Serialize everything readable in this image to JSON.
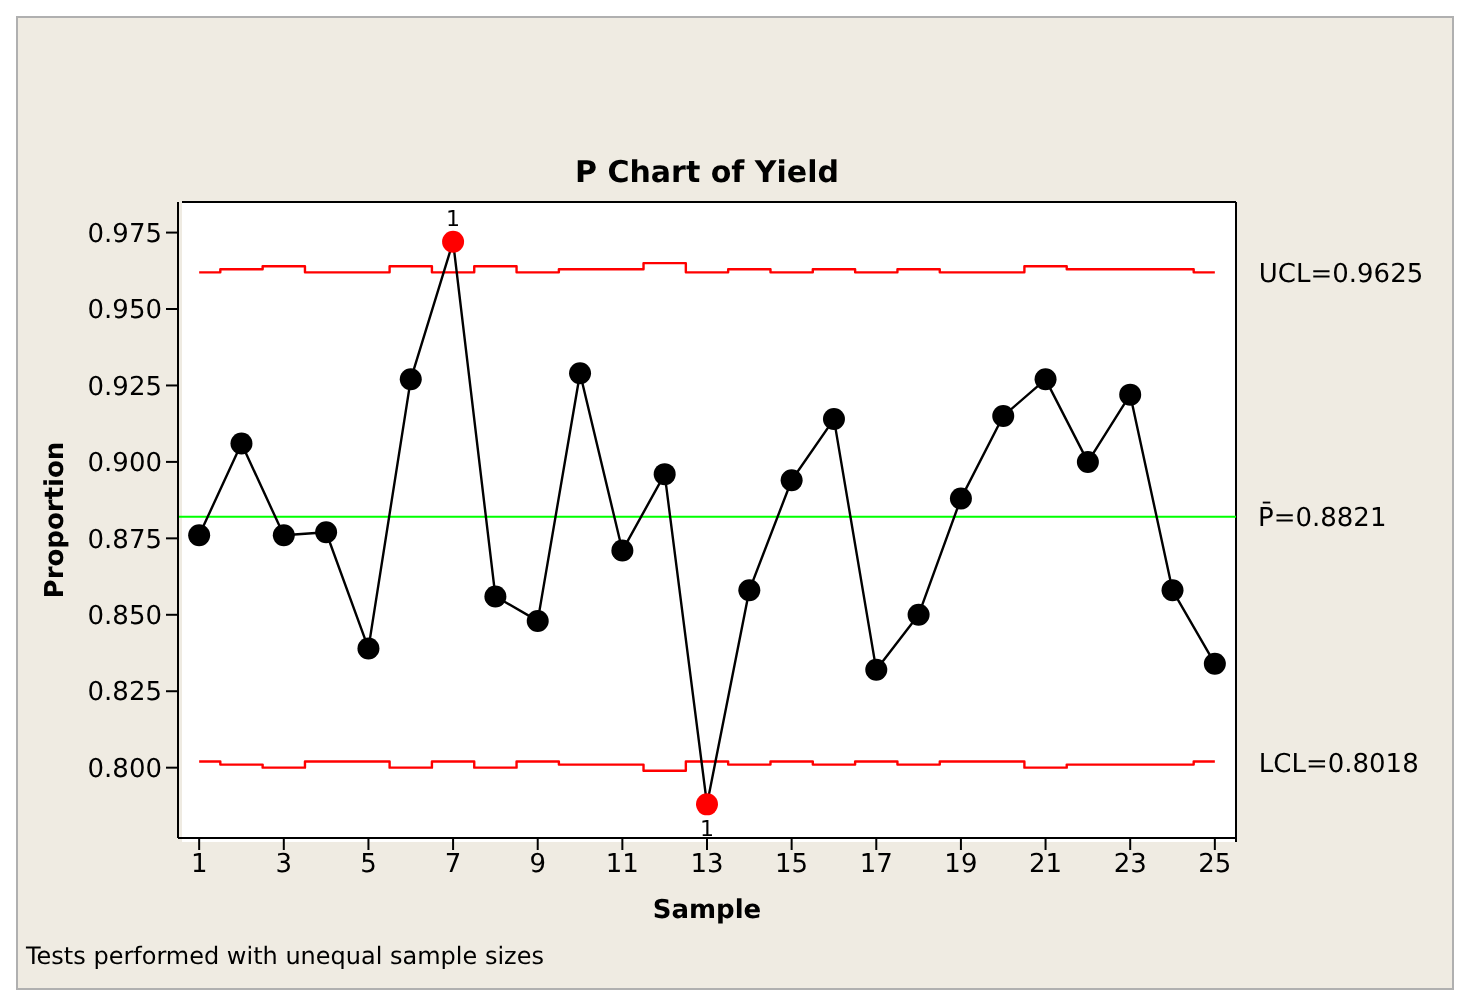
{
  "chart_data": {
    "type": "line",
    "title": "P Chart of Yield",
    "xlabel": "Sample",
    "ylabel": "Proportion",
    "x": [
      1,
      2,
      3,
      4,
      5,
      6,
      7,
      8,
      9,
      10,
      11,
      12,
      13,
      14,
      15,
      16,
      17,
      18,
      19,
      20,
      21,
      22,
      23,
      24,
      25
    ],
    "series": [
      {
        "name": "UCL=0.9625",
        "type": "step",
        "color": "#ff0000",
        "marker": "none",
        "values": [
          0.962,
          0.963,
          0.964,
          0.962,
          0.962,
          0.964,
          0.962,
          0.964,
          0.962,
          0.963,
          0.963,
          0.965,
          0.962,
          0.963,
          0.962,
          0.963,
          0.962,
          0.963,
          0.962,
          0.962,
          0.964,
          0.963,
          0.963,
          0.963,
          0.962
        ]
      },
      {
        "name": "LCL=0.8018",
        "type": "step",
        "color": "#ff0000",
        "marker": "none",
        "values": [
          0.802,
          0.801,
          0.8,
          0.802,
          0.802,
          0.8,
          0.802,
          0.8,
          0.802,
          0.801,
          0.801,
          0.799,
          0.802,
          0.801,
          0.802,
          0.801,
          0.802,
          0.801,
          0.802,
          0.802,
          0.8,
          0.801,
          0.801,
          0.801,
          0.802
        ]
      },
      {
        "color": "#000000",
        "marker": "circle",
        "colors": [
          "#000000",
          "#000000",
          "#000000",
          "#000000",
          "#000000",
          "#000000",
          "#ff0000",
          "#000000",
          "#000000",
          "#000000",
          "#000000",
          "#000000",
          "#ff0000",
          "#000000",
          "#000000",
          "#000000",
          "#000000",
          "#000000",
          "#000000",
          "#000000",
          "#000000",
          "#000000",
          "#000000",
          "#000000",
          "#000000"
        ],
        "values": [
          0.876,
          0.906,
          0.876,
          0.877,
          0.839,
          0.927,
          0.972,
          0.856,
          0.848,
          0.929,
          0.871,
          0.896,
          0.788,
          0.858,
          0.894,
          0.914,
          0.832,
          0.85,
          0.888,
          0.915,
          0.927,
          0.9,
          0.922,
          0.858,
          0.834
        ]
      }
    ],
    "ref_lines": [
      {
        "axis": "y",
        "value": 0.8821,
        "label": "P̄=0.8821",
        "color": "#00ff00"
      }
    ],
    "xlim": [
      0.5,
      25.5
    ],
    "xticks": [
      1,
      3,
      5,
      7,
      9,
      11,
      13,
      15,
      17,
      19,
      21,
      23,
      25
    ],
    "ylim": [
      0.777,
      0.985
    ],
    "yticks": [
      {
        "value": 0.8,
        "label": "0.800"
      },
      {
        "value": 0.825,
        "label": "0.825"
      },
      {
        "value": 0.85,
        "label": "0.850"
      },
      {
        "value": 0.875,
        "label": "0.875"
      },
      {
        "value": 0.9,
        "label": "0.900"
      },
      {
        "value": 0.925,
        "label": "0.925"
      },
      {
        "value": 0.95,
        "label": "0.950"
      },
      {
        "value": 0.975,
        "label": "0.975"
      }
    ],
    "grid": false,
    "legend": false,
    "annotations": [
      {
        "text": "1",
        "x": 7,
        "y": 0.972
      },
      {
        "text": "1",
        "x": 13,
        "y": 0.788
      },
      "Tests performed with unequal sample sizes"
    ]
  }
}
